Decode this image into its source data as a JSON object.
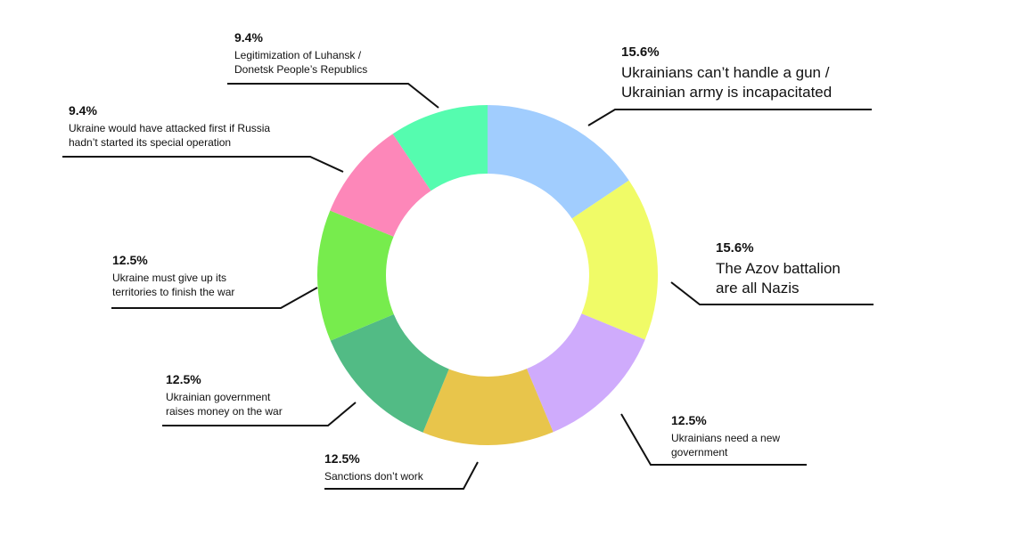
{
  "chart_data": {
    "type": "pie",
    "donut": true,
    "slices": [
      {
        "value": 15.6,
        "percent_label": "15.6%",
        "label": "Ukrainians can’t handle a gun /\nUkrainian army is incapacitated",
        "color": "#a1cdfe"
      },
      {
        "value": 15.6,
        "percent_label": "15.6%",
        "label": "The Azov battalion\nare all Nazis",
        "color": "#f0fb67"
      },
      {
        "value": 12.5,
        "percent_label": "12.5%",
        "label": "Ukrainians need a new\ngovernment",
        "color": "#cfabfc"
      },
      {
        "value": 12.5,
        "percent_label": "12.5%",
        "label": "Sanctions don’t work",
        "color": "#e8c54b"
      },
      {
        "value": 12.5,
        "percent_label": "12.5%",
        "label": "Ukrainian government\nraises money on the war",
        "color": "#52bb85"
      },
      {
        "value": 12.5,
        "percent_label": "12.5%",
        "label": "Ukraine must give up its\nterritories to finish the war",
        "color": "#77ec4d"
      },
      {
        "value": 9.4,
        "percent_label": "9.4%",
        "label": "Ukraine would have attacked first if Russia\nhadn’t started its special operation",
        "color": "#fd87b9"
      },
      {
        "value": 9.4,
        "percent_label": "9.4%",
        "label": "Legitimization of Luhansk /\nDonetsk People’s Republics",
        "color": "#55fcaf"
      }
    ]
  }
}
